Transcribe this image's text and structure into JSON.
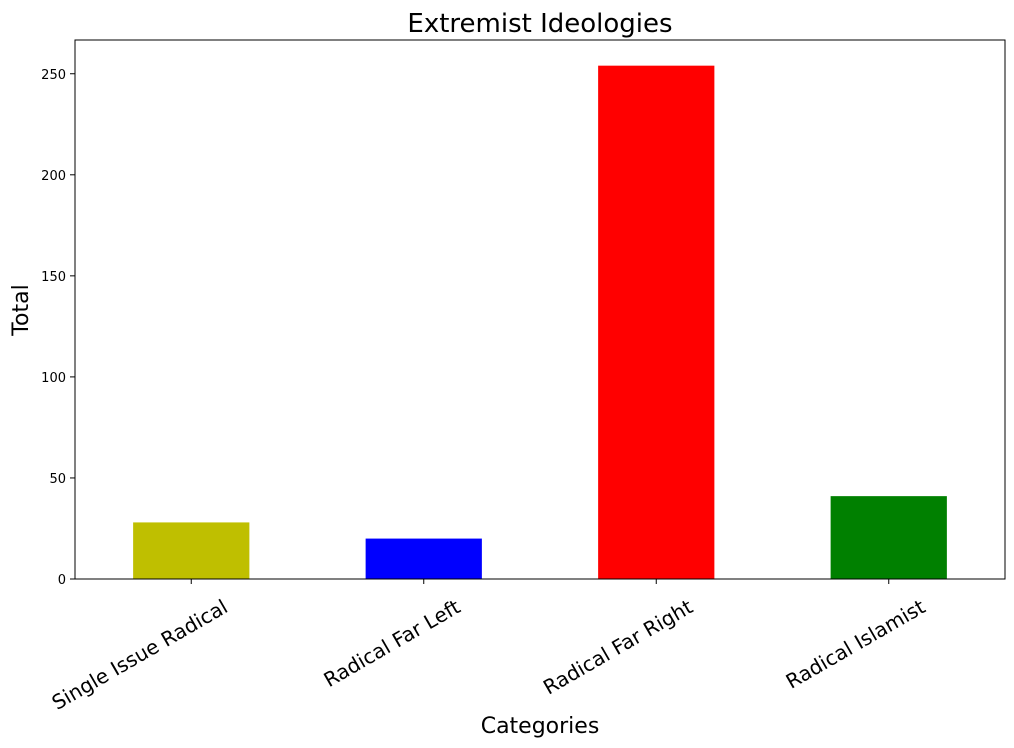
{
  "chart_data": {
    "type": "bar",
    "title": "Extremist Ideologies",
    "xlabel": "Categories",
    "ylabel": "Total",
    "categories": [
      "Single Issue Radical",
      "Radical Far Left",
      "Radical Far Right",
      "Radical Islamist"
    ],
    "values": [
      28,
      20,
      254,
      41
    ],
    "colors": [
      "#bfbf00",
      "#0000ff",
      "#ff0000",
      "#008000"
    ],
    "ylim": [
      0,
      266.7
    ],
    "yticks": [
      0,
      50,
      100,
      150,
      200,
      250
    ],
    "grid": false,
    "legend": false
  }
}
